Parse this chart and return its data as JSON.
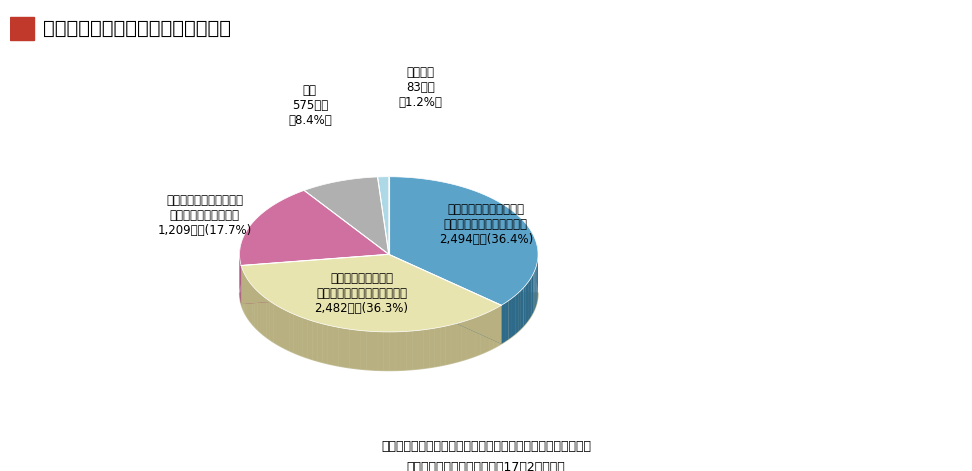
{
  "title": "図２－４－７　病院の耐震化の状況",
  "title_box_color": "#c0392b",
  "background_color": "#ffffff",
  "slices": [
    {
      "label_line1": "すべての建物が新耐震基",
      "label_line2": "準に従って建設された病院",
      "label_line3": "2,494病院(36.4%)",
      "value": 36.4,
      "color": "#5ba3c9",
      "dark_color": "#2e6a8a",
      "label_pos": "inside_right"
    },
    {
      "label_line1": "一部の建物が新耐震",
      "label_line2": "基準に従って建設された病院",
      "label_line3": "2,482病院(36.3%)",
      "value": 36.3,
      "color": "#e8e4b0",
      "dark_color": "#b8b080",
      "label_pos": "inside_bottom"
    },
    {
      "label_line1": "新耐震基準に従って建設",
      "label_line2": "された建物がない病院",
      "label_line3": "1,209病院(17.7%)",
      "value": 17.7,
      "color": "#d070a0",
      "dark_color": "#a04070",
      "label_pos": "outside_left"
    },
    {
      "label_line1": "不明",
      "label_line2": "575病院",
      "label_line3": "（8.4%）",
      "value": 8.4,
      "color": "#b0b0b0",
      "dark_color": "#808080",
      "label_pos": "outside_top_left"
    },
    {
      "label_line1": "回答なし",
      "label_line2": "83病院",
      "label_line3": "（1.2%）",
      "value": 1.2,
      "color": "#add8e6",
      "dark_color": "#7da8b6",
      "label_pos": "outside_top"
    }
  ],
  "footnote_line1": "対象：二十人以上の患者を入院させるための施設を有する病院",
  "footnote_line2": "厚生労働省資料による（平成17年2月現在）"
}
